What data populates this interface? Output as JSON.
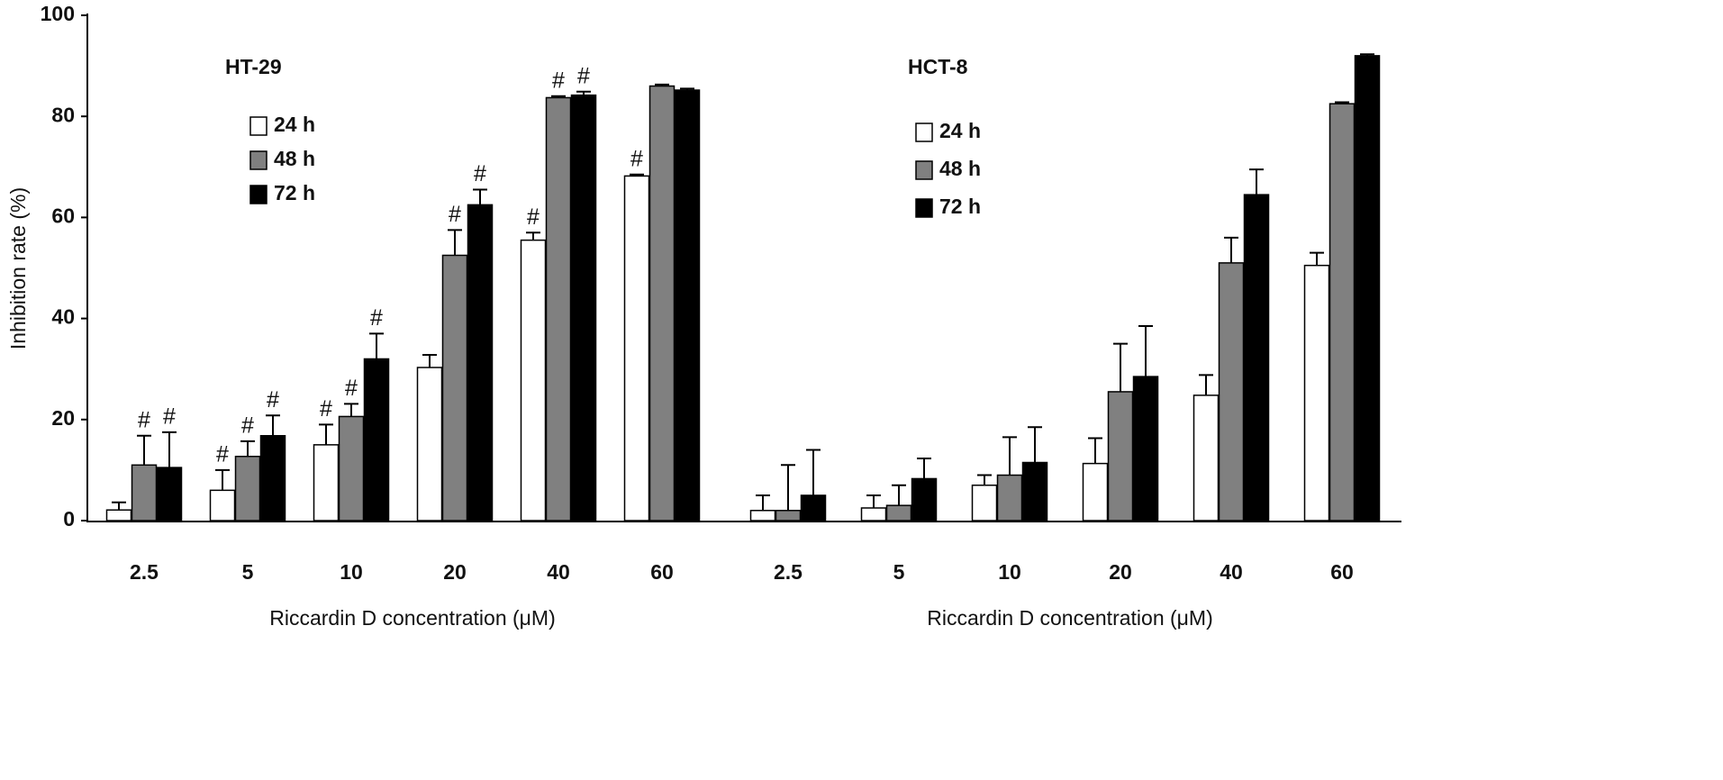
{
  "chart_data": {
    "type": "bar",
    "y_label": "Inhibition rate (%)",
    "ylim": [
      0,
      100
    ],
    "yticks": [
      0,
      20,
      40,
      60,
      80,
      100
    ],
    "grid": false,
    "groups": [
      {
        "title": "HT-29",
        "x_label": "Riccardin D concentration (μM)",
        "categories": [
          "2.5",
          "5",
          "10",
          "20",
          "40",
          "60"
        ],
        "series": [
          {
            "name": "24 h",
            "color": "#ffffff",
            "values": [
              2.1,
              6,
              15,
              30.3,
              55.5,
              68.2
            ],
            "errors": [
              1.5,
              4,
              4,
              2.5,
              1.5,
              0.3
            ],
            "annotations": [
              null,
              "#",
              "#",
              null,
              "#",
              "#"
            ]
          },
          {
            "name": "48 h",
            "color": "#808080",
            "values": [
              11,
              12.7,
              20.6,
              52.5,
              83.7,
              86
            ],
            "errors": [
              5.8,
              3,
              2.5,
              5,
              0.3,
              0.3
            ],
            "annotations": [
              "#",
              "#",
              "#",
              "#",
              "#",
              null
            ]
          },
          {
            "name": "72 h",
            "color": "#000000",
            "values": [
              10.5,
              16.8,
              32,
              62.5,
              84.2,
              85.2
            ],
            "errors": [
              7,
              4,
              5,
              3,
              0.7,
              0.3
            ],
            "annotations": [
              "#",
              "#",
              "#",
              "#",
              "#",
              null
            ]
          }
        ]
      },
      {
        "title": "HCT-8",
        "x_label": "Riccardin D concentration (μM)",
        "categories": [
          "2.5",
          "5",
          "10",
          "20",
          "40",
          "60"
        ],
        "series": [
          {
            "name": "24 h",
            "color": "#ffffff",
            "values": [
              2,
              2.5,
              7,
              11.3,
              24.8,
              50.5
            ],
            "errors": [
              3,
              2.5,
              2,
              5,
              4,
              2.5
            ]
          },
          {
            "name": "48 h",
            "color": "#808080",
            "values": [
              2,
              3,
              9,
              25.5,
              51,
              82.5
            ],
            "errors": [
              9,
              4,
              7.5,
              9.5,
              5,
              0.3
            ]
          },
          {
            "name": "72 h",
            "color": "#000000",
            "values": [
              5,
              8.3,
              11.5,
              28.5,
              64.5,
              92
            ],
            "errors": [
              9,
              4,
              7,
              10,
              5,
              0.3
            ]
          }
        ]
      }
    ]
  }
}
